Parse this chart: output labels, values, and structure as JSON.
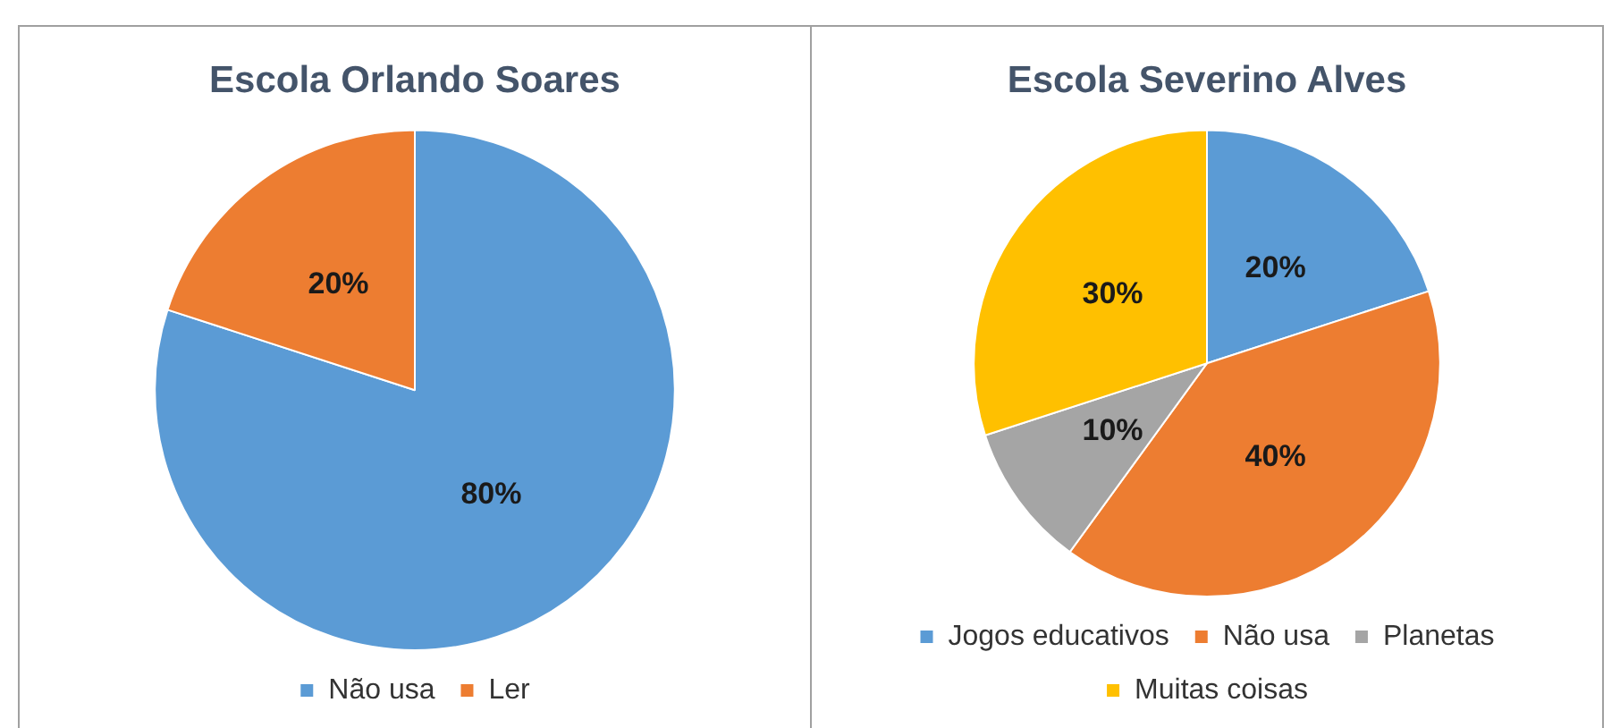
{
  "chart_data": [
    {
      "type": "pie",
      "title": "Escola Orlando Soares",
      "categories": [
        "Não usa",
        "Ler"
      ],
      "values": [
        80,
        20
      ],
      "colors": [
        "#5b9bd5",
        "#ed7d31"
      ],
      "value_labels": [
        "80%",
        "20%"
      ],
      "legend": "bottom"
    },
    {
      "type": "pie",
      "title": "Escola Severino Alves",
      "categories": [
        "Jogos educativos",
        "Não usa",
        "Planetas",
        "Muitas coisas"
      ],
      "values": [
        20,
        40,
        10,
        30
      ],
      "colors": [
        "#5b9bd5",
        "#ed7d31",
        "#a5a5a5",
        "#ffc000"
      ],
      "value_labels": [
        "20%",
        "40%",
        "10%",
        "30%"
      ],
      "legend": "bottom"
    }
  ]
}
